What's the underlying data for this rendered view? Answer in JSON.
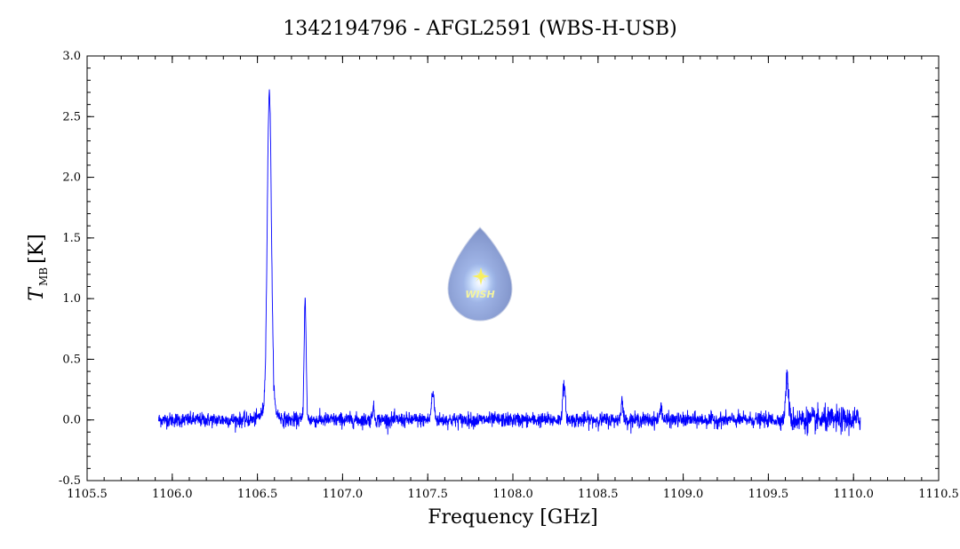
{
  "chart_data": {
    "type": "line",
    "title": "1342194796 - AFGL2591 (WBS-H-USB)",
    "xlabel": "Frequency [GHz]",
    "ylabel": "T",
    "ylabel_subscript": "MB",
    "ylabel_unit": "[K]",
    "xlim": [
      1105.5,
      1110.5
    ],
    "ylim": [
      -0.5,
      3.0
    ],
    "xticks": [
      "1105.5",
      "1106.0",
      "1106.5",
      "1107.0",
      "1107.5",
      "1108.0",
      "1108.5",
      "1109.0",
      "1109.5",
      "1110.0",
      "1110.5"
    ],
    "yticks": [
      "3.0",
      "2.5",
      "2.0",
      "1.5",
      "1.0",
      "0.5",
      "0.0",
      "-0.5"
    ],
    "grid": false,
    "series": [
      {
        "color": "#0000ff",
        "x_range": [
          1105.92,
          1110.04
        ],
        "baseline_noise": 0.03,
        "lines": [
          {
            "center": 1106.57,
            "peak": 2.6,
            "width": 0.012
          },
          {
            "center": 1106.78,
            "peak": 0.98,
            "width": 0.006
          },
          {
            "center": 1107.18,
            "peak": 0.1,
            "width": 0.006
          },
          {
            "center": 1107.53,
            "peak": 0.22,
            "width": 0.008
          },
          {
            "center": 1108.3,
            "peak": 0.28,
            "width": 0.008
          },
          {
            "center": 1108.64,
            "peak": 0.16,
            "width": 0.006
          },
          {
            "center": 1108.87,
            "peak": 0.12,
            "width": 0.006
          },
          {
            "center": 1109.61,
            "peak": 0.36,
            "width": 0.008
          }
        ]
      }
    ],
    "logo": {
      "name": "wish-logo",
      "text": "WISH"
    }
  }
}
